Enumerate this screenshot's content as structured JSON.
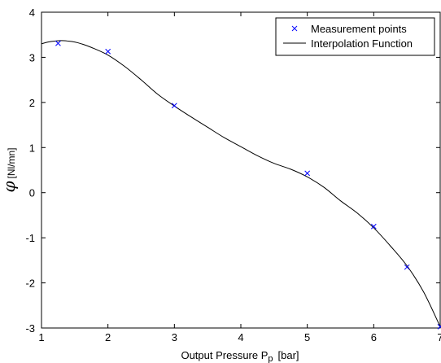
{
  "chart_data": {
    "type": "line",
    "title": "",
    "xlabel": {
      "main": "Output Pressure P",
      "sub": "p",
      "unit": "[bar]"
    },
    "ylabel": {
      "symbol": "φ",
      "unit": "[Nl/mn]"
    },
    "xlim": [
      1,
      7
    ],
    "ylim": [
      -3,
      4
    ],
    "xticks": [
      "1",
      "2",
      "3",
      "4",
      "5",
      "6",
      "7"
    ],
    "yticks": [
      "-3",
      "-2",
      "-1",
      "0",
      "1",
      "2",
      "3",
      "4"
    ],
    "grid": false,
    "legend_position": "top-right",
    "series": [
      {
        "name": "Measurement points",
        "kind": "scatter",
        "marker": "x",
        "color": "#0000ff",
        "x": [
          1.25,
          2.0,
          3.0,
          5.0,
          6.0,
          6.5,
          7.0
        ],
        "y": [
          3.31,
          3.13,
          1.93,
          0.43,
          -0.75,
          -1.65,
          -2.97
        ]
      },
      {
        "name": "Interpolation Function",
        "kind": "line",
        "color": "#000000",
        "x": [
          1.0,
          1.1,
          1.2,
          1.3,
          1.4,
          1.5,
          1.6,
          1.75,
          2.0,
          2.25,
          2.5,
          2.75,
          3.0,
          3.25,
          3.5,
          3.75,
          4.0,
          4.25,
          4.5,
          4.75,
          5.0,
          5.25,
          5.5,
          5.75,
          6.0,
          6.25,
          6.5,
          6.75,
          7.0
        ],
        "y": [
          3.3,
          3.34,
          3.36,
          3.37,
          3.36,
          3.34,
          3.3,
          3.22,
          3.05,
          2.8,
          2.5,
          2.18,
          1.92,
          1.68,
          1.45,
          1.22,
          1.02,
          0.82,
          0.65,
          0.52,
          0.35,
          0.12,
          -0.18,
          -0.45,
          -0.78,
          -1.18,
          -1.62,
          -2.2,
          -2.97
        ]
      }
    ]
  }
}
